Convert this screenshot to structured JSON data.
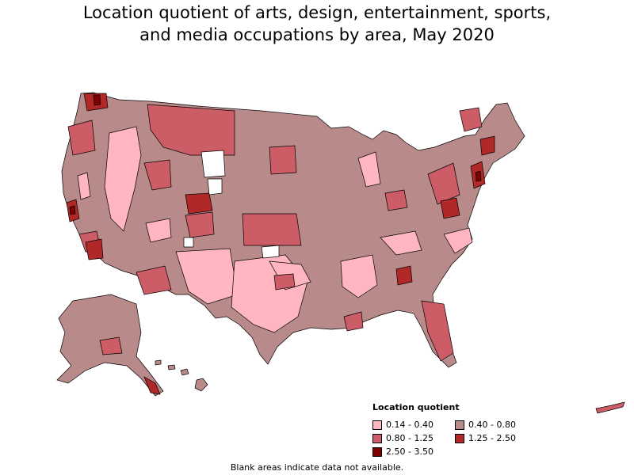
{
  "title": {
    "line1": "Location quotient of arts, design, entertainment, sports,",
    "line2": "and media occupations by area, May 2020"
  },
  "legend": {
    "title": "Location quotient",
    "items": [
      {
        "label": "0.14 - 0.40",
        "color": "#ffb6c1"
      },
      {
        "label": "0.40 - 0.80",
        "color": "#b88a8a"
      },
      {
        "label": "0.80 - 1.25",
        "color": "#cc5c66"
      },
      {
        "label": "1.25 - 2.50",
        "color": "#b02828"
      },
      {
        "label": "2.50 - 3.50",
        "color": "#800000"
      }
    ]
  },
  "footnote": "Blank areas indicate data not available.",
  "colors": {
    "outline": "#000000",
    "nodata": "#ffffff",
    "background": "#ffffff"
  }
}
